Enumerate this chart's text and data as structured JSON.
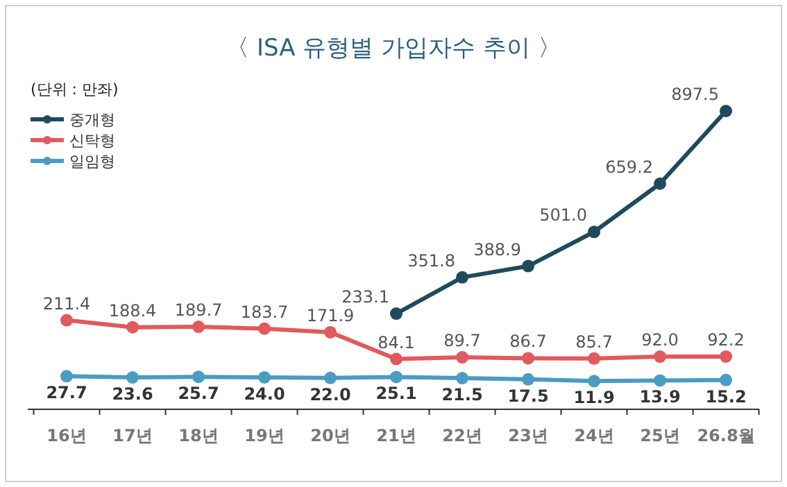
{
  "chart_data": {
    "type": "line",
    "title": "〈 ISA 유형별 가입자수 추이 〉",
    "annotations": [
      "(단위 : 만좌)"
    ],
    "categories": [
      "16년",
      "17년",
      "18년",
      "19년",
      "20년",
      "21년",
      "22년",
      "23년",
      "24년",
      "25년",
      "26.8월"
    ],
    "series": [
      {
        "name": "중개형",
        "color": "#1f4a5c",
        "values": [
          null,
          null,
          null,
          null,
          null,
          233.1,
          351.8,
          388.9,
          501.0,
          659.2,
          897.5
        ],
        "value_labels": [
          null,
          null,
          null,
          null,
          null,
          "233.1",
          "351.8",
          "388.9",
          "501.0",
          "659.2",
          "897.5"
        ]
      },
      {
        "name": "신탁형",
        "color": "#e05a5e",
        "values": [
          211.4,
          188.4,
          189.7,
          183.7,
          171.9,
          84.1,
          89.7,
          86.7,
          85.7,
          92.0,
          92.2
        ],
        "value_labels": [
          "211.4",
          "188.4",
          "189.7",
          "183.7",
          "171.9",
          "84.1",
          "89.7",
          "86.7",
          "85.7",
          "92.0",
          "92.2"
        ]
      },
      {
        "name": "일임형",
        "color": "#4a9cc2",
        "values": [
          27.7,
          23.6,
          25.7,
          24.0,
          22.0,
          25.1,
          21.5,
          17.5,
          11.9,
          13.9,
          15.2
        ],
        "value_labels": [
          "27.7",
          "23.6",
          "25.7",
          "24.0",
          "22.0",
          "25.1",
          "21.5",
          "17.5",
          "11.9",
          "13.9",
          "15.2"
        ]
      }
    ],
    "legend": "top left",
    "marker": "circle"
  }
}
